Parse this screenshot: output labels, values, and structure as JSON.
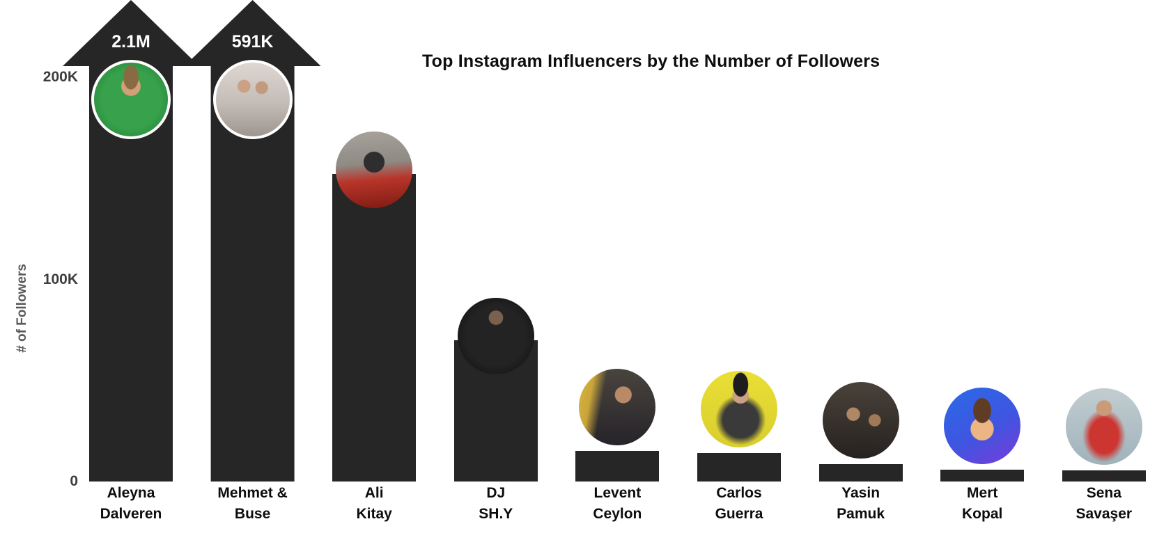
{
  "chart_data": {
    "type": "bar",
    "title": "Top Instagram Influencers by the Number of Followers",
    "ylabel": "# of Followers",
    "xlabel": "",
    "ylim": [
      0,
      200000
    ],
    "grid": false,
    "legend": false,
    "ytick_labels": [
      "200K",
      "100K",
      "0"
    ],
    "ytick_values": [
      200000,
      100000,
      0
    ],
    "categories": [
      "Aleyna Dalveren",
      "Mehmet & Buse",
      "Ali Kitay",
      "DJ SH.Y",
      "Levent Ceylon",
      "Carlos Guerra",
      "Yasin Pamuk",
      "Mert Kopal",
      "Sena Savaşer"
    ],
    "values": [
      2100000,
      591000,
      152000,
      70000,
      15000,
      14000,
      8500,
      6000,
      5500
    ],
    "bar_color": "#262626",
    "bars": [
      {
        "slug": "aleyna-dalveren",
        "label_line1": "Aleyna",
        "label_line2": "Dalveren",
        "value": 2100000,
        "value_label": "2.1M",
        "exceeds_axis": true,
        "avatar_name": "aleyna-dalveren-photo",
        "avatar_theme_color": "#2f9e44"
      },
      {
        "slug": "mehmet-buse",
        "label_line1": "Mehmet &",
        "label_line2": "Buse",
        "value": 591000,
        "value_label": "591K",
        "exceeds_axis": true,
        "avatar_name": "mehmet-buse-photo",
        "avatar_theme_color": "#cfc7c1"
      },
      {
        "slug": "ali-kitay",
        "label_line1": "Ali",
        "label_line2": "Kitay",
        "value": 152000,
        "value_label": "",
        "exceeds_axis": false,
        "avatar_name": "ali-kitay-photo",
        "avatar_theme_color": "#b8352a"
      },
      {
        "slug": "dj-shy",
        "label_line1": "DJ",
        "label_line2": "SH.Y",
        "value": 70000,
        "value_label": "",
        "exceeds_axis": false,
        "avatar_name": "dj-shy-photo",
        "avatar_theme_color": "#161616"
      },
      {
        "slug": "levent-ceylon",
        "label_line1": "Levent",
        "label_line2": "Ceylon",
        "value": 15000,
        "value_label": "",
        "exceeds_axis": false,
        "avatar_name": "levent-ceylon-photo",
        "avatar_theme_color": "#3a342e"
      },
      {
        "slug": "carlos-guerra",
        "label_line1": "Carlos",
        "label_line2": "Guerra",
        "value": 14000,
        "value_label": "",
        "exceeds_axis": false,
        "avatar_name": "carlos-guerra-photo",
        "avatar_theme_color": "#e5da32"
      },
      {
        "slug": "yasin-pamuk",
        "label_line1": "Yasin",
        "label_line2": "Pamuk",
        "value": 8500,
        "value_label": "",
        "exceeds_axis": false,
        "avatar_name": "yasin-pamuk-photo",
        "avatar_theme_color": "#38312b"
      },
      {
        "slug": "mert-kopal",
        "label_line1": "Mert",
        "label_line2": "Kopal",
        "value": 6000,
        "value_label": "",
        "exceeds_axis": false,
        "avatar_name": "mert-kopal-avatar",
        "avatar_theme_color": "#3a5ee4"
      },
      {
        "slug": "sena-savaser",
        "label_line1": "Sena",
        "label_line2": "Savaşer",
        "value": 5500,
        "value_label": "",
        "exceeds_axis": false,
        "avatar_name": "sena-savaser-photo",
        "avatar_theme_color": "#cc3530"
      }
    ]
  },
  "colors": {
    "background": "#ffffff",
    "bar": "#262626",
    "title_text": "#0e0e0e",
    "tick_text": "#3d3d3d",
    "axis_label_text": "#595959",
    "category_text": "#0d0d0d",
    "overflow_value_text": "#ffffff",
    "avatar_ring": "#ffffff"
  }
}
